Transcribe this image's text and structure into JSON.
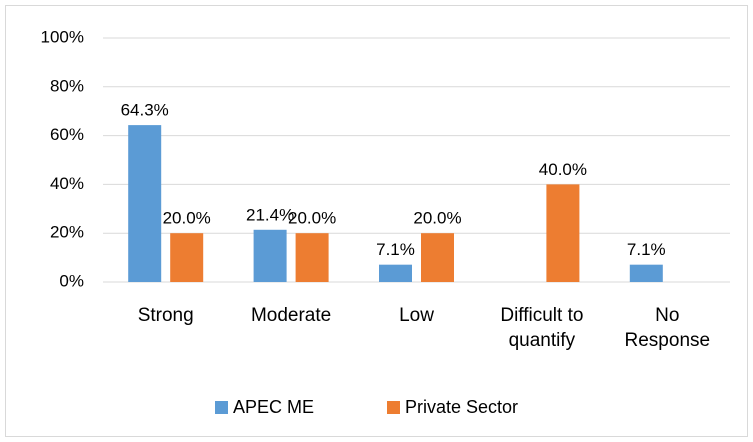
{
  "chart_data": {
    "type": "bar",
    "categories": [
      "Strong",
      "Moderate",
      "Low",
      "Difficult to\nquantify",
      "No\nResponse"
    ],
    "series": [
      {
        "name": "APEC ME",
        "color": "#5b9bd5",
        "values": [
          64.3,
          21.4,
          7.1,
          null,
          7.1
        ],
        "value_labels": [
          "64.3%",
          "21.4%",
          "7.1%",
          null,
          "7.1%"
        ]
      },
      {
        "name": "Private Sector",
        "color": "#ed7d31",
        "values": [
          20,
          20,
          20,
          40,
          null
        ],
        "value_labels": [
          "20.0%",
          "20.0%",
          "20.0%",
          "40.0%",
          null
        ]
      }
    ],
    "ylim": [
      0,
      100
    ],
    "yticks": [
      {
        "value": 0,
        "label": "0%"
      },
      {
        "value": 20,
        "label": "20%"
      },
      {
        "value": 40,
        "label": "40%"
      },
      {
        "value": 60,
        "label": "60%"
      },
      {
        "value": 80,
        "label": "80%"
      },
      {
        "value": 100,
        "label": "100%"
      }
    ],
    "grid": true,
    "legend": "bottom"
  }
}
